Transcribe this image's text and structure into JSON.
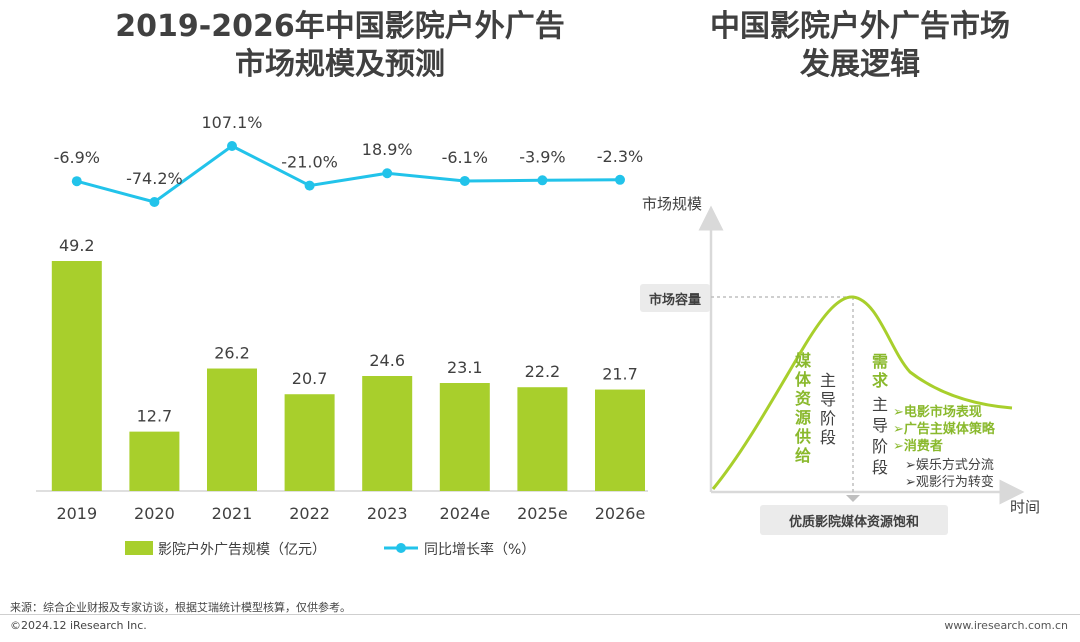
{
  "left_title": {
    "line1": "2019-2026年中国影院户外广告",
    "line2": "市场规模及预测"
  },
  "right_title": {
    "line1": "中国影院户外广告市场",
    "line2": "发展逻辑"
  },
  "colors": {
    "bar": "#a8cf2c",
    "line": "#22c3ea",
    "green_text": "#8ab92d",
    "axis": "#cccccc"
  },
  "chart_data": {
    "type": "bar",
    "title": "2019-2026年中国影院户外广告市场规模及预测",
    "categories": [
      "2019",
      "2020",
      "2021",
      "2022",
      "2023",
      "2024e",
      "2025e",
      "2026e"
    ],
    "series": [
      {
        "name": "影院户外广告规模（亿元）",
        "type": "bar",
        "values": [
          49.2,
          12.7,
          26.2,
          20.7,
          24.6,
          23.1,
          22.2,
          21.7
        ],
        "labels": [
          "49.2",
          "12.7",
          "26.2",
          "20.7",
          "24.6",
          "23.1",
          "22.2",
          "21.7"
        ]
      },
      {
        "name": "同比增长率（%）",
        "type": "line",
        "values": [
          -6.9,
          -74.2,
          107.1,
          -21.0,
          18.9,
          -6.1,
          -3.9,
          -2.3
        ],
        "labels": [
          "-6.9%",
          "-74.2%",
          "107.1%",
          "-21.0%",
          "18.9%",
          "-6.1%",
          "-3.9%",
          "-2.3%"
        ]
      }
    ],
    "bar_ylim": [
      0,
      55
    ],
    "line_ylim": [
      -120,
      150
    ]
  },
  "logic_diagram": {
    "y_axis_label": "市场规模",
    "x_axis_label": "时间",
    "capacity_label": "市场容量",
    "saturation_label": "优质影院媒体资源饱和",
    "phase1_green": [
      "媒",
      "体",
      "资",
      "源",
      "供",
      "给"
    ],
    "phase1_black": [
      "主",
      "导",
      "阶",
      "段"
    ],
    "phase2_green": [
      "需",
      "求"
    ],
    "phase2_black": [
      "主",
      "导",
      "阶",
      "段"
    ],
    "factors_green": [
      "➢电影市场表现",
      "➢广告主媒体策略",
      "➢消费者"
    ],
    "factors_black": [
      "➢娱乐方式分流",
      "➢观影行为转变"
    ]
  },
  "footer": {
    "source": "来源：综合企业财报及专家访谈，根据艾瑞统计模型核算，仅供参考。",
    "copyright": "©2024.12 iResearch Inc.",
    "url": "www.iresearch.com.cn"
  }
}
